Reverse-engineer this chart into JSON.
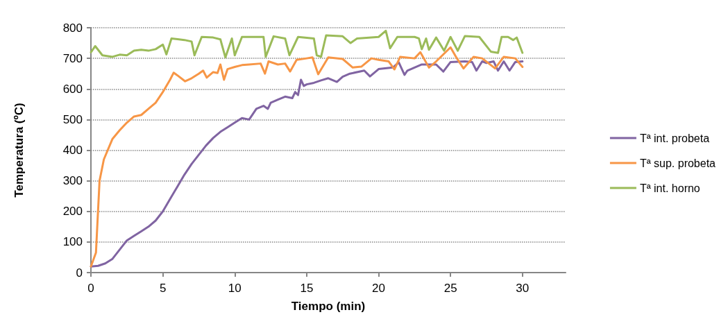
{
  "chart_data": {
    "type": "line",
    "xlabel": "Tiempo (min)",
    "ylabel": "Temperatura (ºC)",
    "xlim": [
      0,
      33
    ],
    "xticks": [
      0,
      5,
      10,
      15,
      20,
      25,
      30
    ],
    "ylim": [
      0,
      800
    ],
    "yticks": [
      0,
      100,
      200,
      300,
      400,
      500,
      600,
      700,
      800
    ],
    "grid": "y",
    "legend": "right",
    "marker": "none",
    "line_style": "solid",
    "series": [
      {
        "name": "Tª int. probeta",
        "color": "#8064a2",
        "x": [
          0,
          0.5,
          1,
          1.5,
          2,
          2.5,
          3,
          3.5,
          4,
          4.5,
          5,
          5.5,
          6,
          6.5,
          7,
          7.5,
          8,
          8.5,
          9,
          9.5,
          10,
          10.5,
          11,
          11.5,
          12,
          12.3,
          12.5,
          13,
          13.5,
          14,
          14.2,
          14.4,
          14.6,
          14.8,
          15,
          15.5,
          16,
          16.5,
          17.1,
          17.5,
          18,
          19,
          19.4,
          20,
          21,
          21.4,
          21.8,
          22,
          23,
          24,
          24.5,
          25,
          26,
          26.5,
          26.8,
          27.2,
          27.5,
          28,
          28.3,
          28.7,
          29.1,
          29.5,
          30
        ],
        "values": [
          20,
          22,
          30,
          45,
          75,
          105,
          120,
          135,
          150,
          170,
          200,
          240,
          280,
          320,
          355,
          385,
          415,
          440,
          460,
          475,
          490,
          505,
          500,
          535,
          545,
          535,
          555,
          565,
          575,
          570,
          590,
          580,
          630,
          610,
          615,
          620,
          628,
          635,
          623,
          640,
          650,
          660,
          641,
          665,
          670,
          687,
          646,
          660,
          680,
          680,
          657,
          688,
          690,
          688,
          660,
          690,
          685,
          690,
          660,
          690,
          660,
          688,
          690
        ]
      },
      {
        "name": "Tª sup. probeta",
        "color": "#f79646",
        "x": [
          0,
          0.35,
          0.6,
          0.9,
          1.5,
          2,
          2.5,
          3,
          3.5,
          4,
          4.5,
          5,
          5.5,
          5.75,
          6,
          6.55,
          7,
          7.5,
          7.8,
          8.05,
          8.5,
          8.8,
          9,
          9.25,
          9.5,
          10,
          10.5,
          11,
          11.8,
          12.1,
          12.35,
          13,
          13.5,
          13.85,
          14.3,
          15,
          15.4,
          15.8,
          16.5,
          17.5,
          18.2,
          18.8,
          19.5,
          20,
          20.7,
          21.1,
          21.5,
          22.5,
          22.9,
          23.5,
          24,
          25,
          25.4,
          25.9,
          26.6,
          27.2,
          28.1,
          28.7,
          29.5,
          30
        ],
        "values": [
          20,
          65,
          300,
          370,
          437,
          465,
          490,
          510,
          515,
          535,
          555,
          590,
          630,
          653,
          645,
          625,
          635,
          650,
          660,
          637,
          655,
          652,
          680,
          630,
          665,
          672,
          678,
          680,
          683,
          650,
          690,
          680,
          683,
          657,
          695,
          700,
          703,
          648,
          703,
          698,
          670,
          673,
          700,
          695,
          690,
          664,
          705,
          700,
          720,
          670,
          690,
          736,
          703,
          667,
          705,
          700,
          667,
          705,
          700,
          672
        ]
      },
      {
        "name": "Tª int. horno",
        "color": "#9bbb59",
        "x": [
          0,
          0.3,
          0.8,
          1.5,
          2,
          2.5,
          3,
          3.5,
          4,
          4.5,
          5,
          5.25,
          5.6,
          6.5,
          7,
          7.2,
          7.7,
          8.5,
          9,
          9.35,
          9.8,
          10,
          10.5,
          12,
          12.15,
          12.7,
          13.5,
          13.8,
          14.4,
          15.5,
          15.7,
          16,
          16.35,
          17.5,
          18.05,
          18.5,
          19.5,
          20,
          20.5,
          20.8,
          21.3,
          22.5,
          22.8,
          23,
          23.3,
          23.5,
          24,
          24.55,
          25,
          25.5,
          26,
          27,
          27.8,
          28.3,
          28.55,
          29,
          29.35,
          29.6,
          30
        ],
        "values": [
          720,
          740,
          710,
          705,
          712,
          710,
          725,
          728,
          725,
          730,
          745,
          713,
          765,
          760,
          755,
          710,
          770,
          768,
          762,
          703,
          765,
          710,
          770,
          770,
          705,
          772,
          765,
          710,
          770,
          765,
          710,
          705,
          775,
          772,
          750,
          765,
          768,
          770,
          790,
          733,
          770,
          770,
          765,
          730,
          765,
          728,
          768,
          725,
          770,
          725,
          773,
          770,
          722,
          718,
          770,
          770,
          760,
          768,
          718
        ]
      }
    ]
  }
}
